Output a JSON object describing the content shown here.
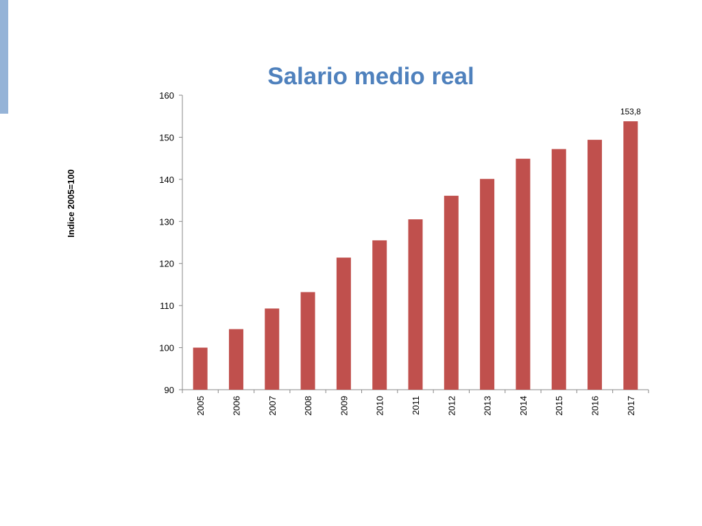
{
  "accent_color": "#95b3d7",
  "chart_data": {
    "type": "bar",
    "title": "Salario medio real",
    "ylabel": "Indice 2005=100",
    "xlabel": "",
    "ylim": [
      90,
      160
    ],
    "yticks": [
      90,
      100,
      110,
      120,
      130,
      140,
      150,
      160
    ],
    "categories": [
      "2005",
      "2006",
      "2007",
      "2008",
      "2009",
      "2010",
      "2011",
      "2012",
      "2013",
      "2014",
      "2015",
      "2016",
      "2017"
    ],
    "values": [
      100,
      104.4,
      109.3,
      113.2,
      121.4,
      125.5,
      130.5,
      136.1,
      140.1,
      144.9,
      147.2,
      149.4,
      153.8
    ],
    "data_labels": [
      {
        "category": "2017",
        "text": "153,8"
      }
    ],
    "bar_color": "#c0504d",
    "axis_color": "#868686",
    "grid": false,
    "legend": "none"
  }
}
